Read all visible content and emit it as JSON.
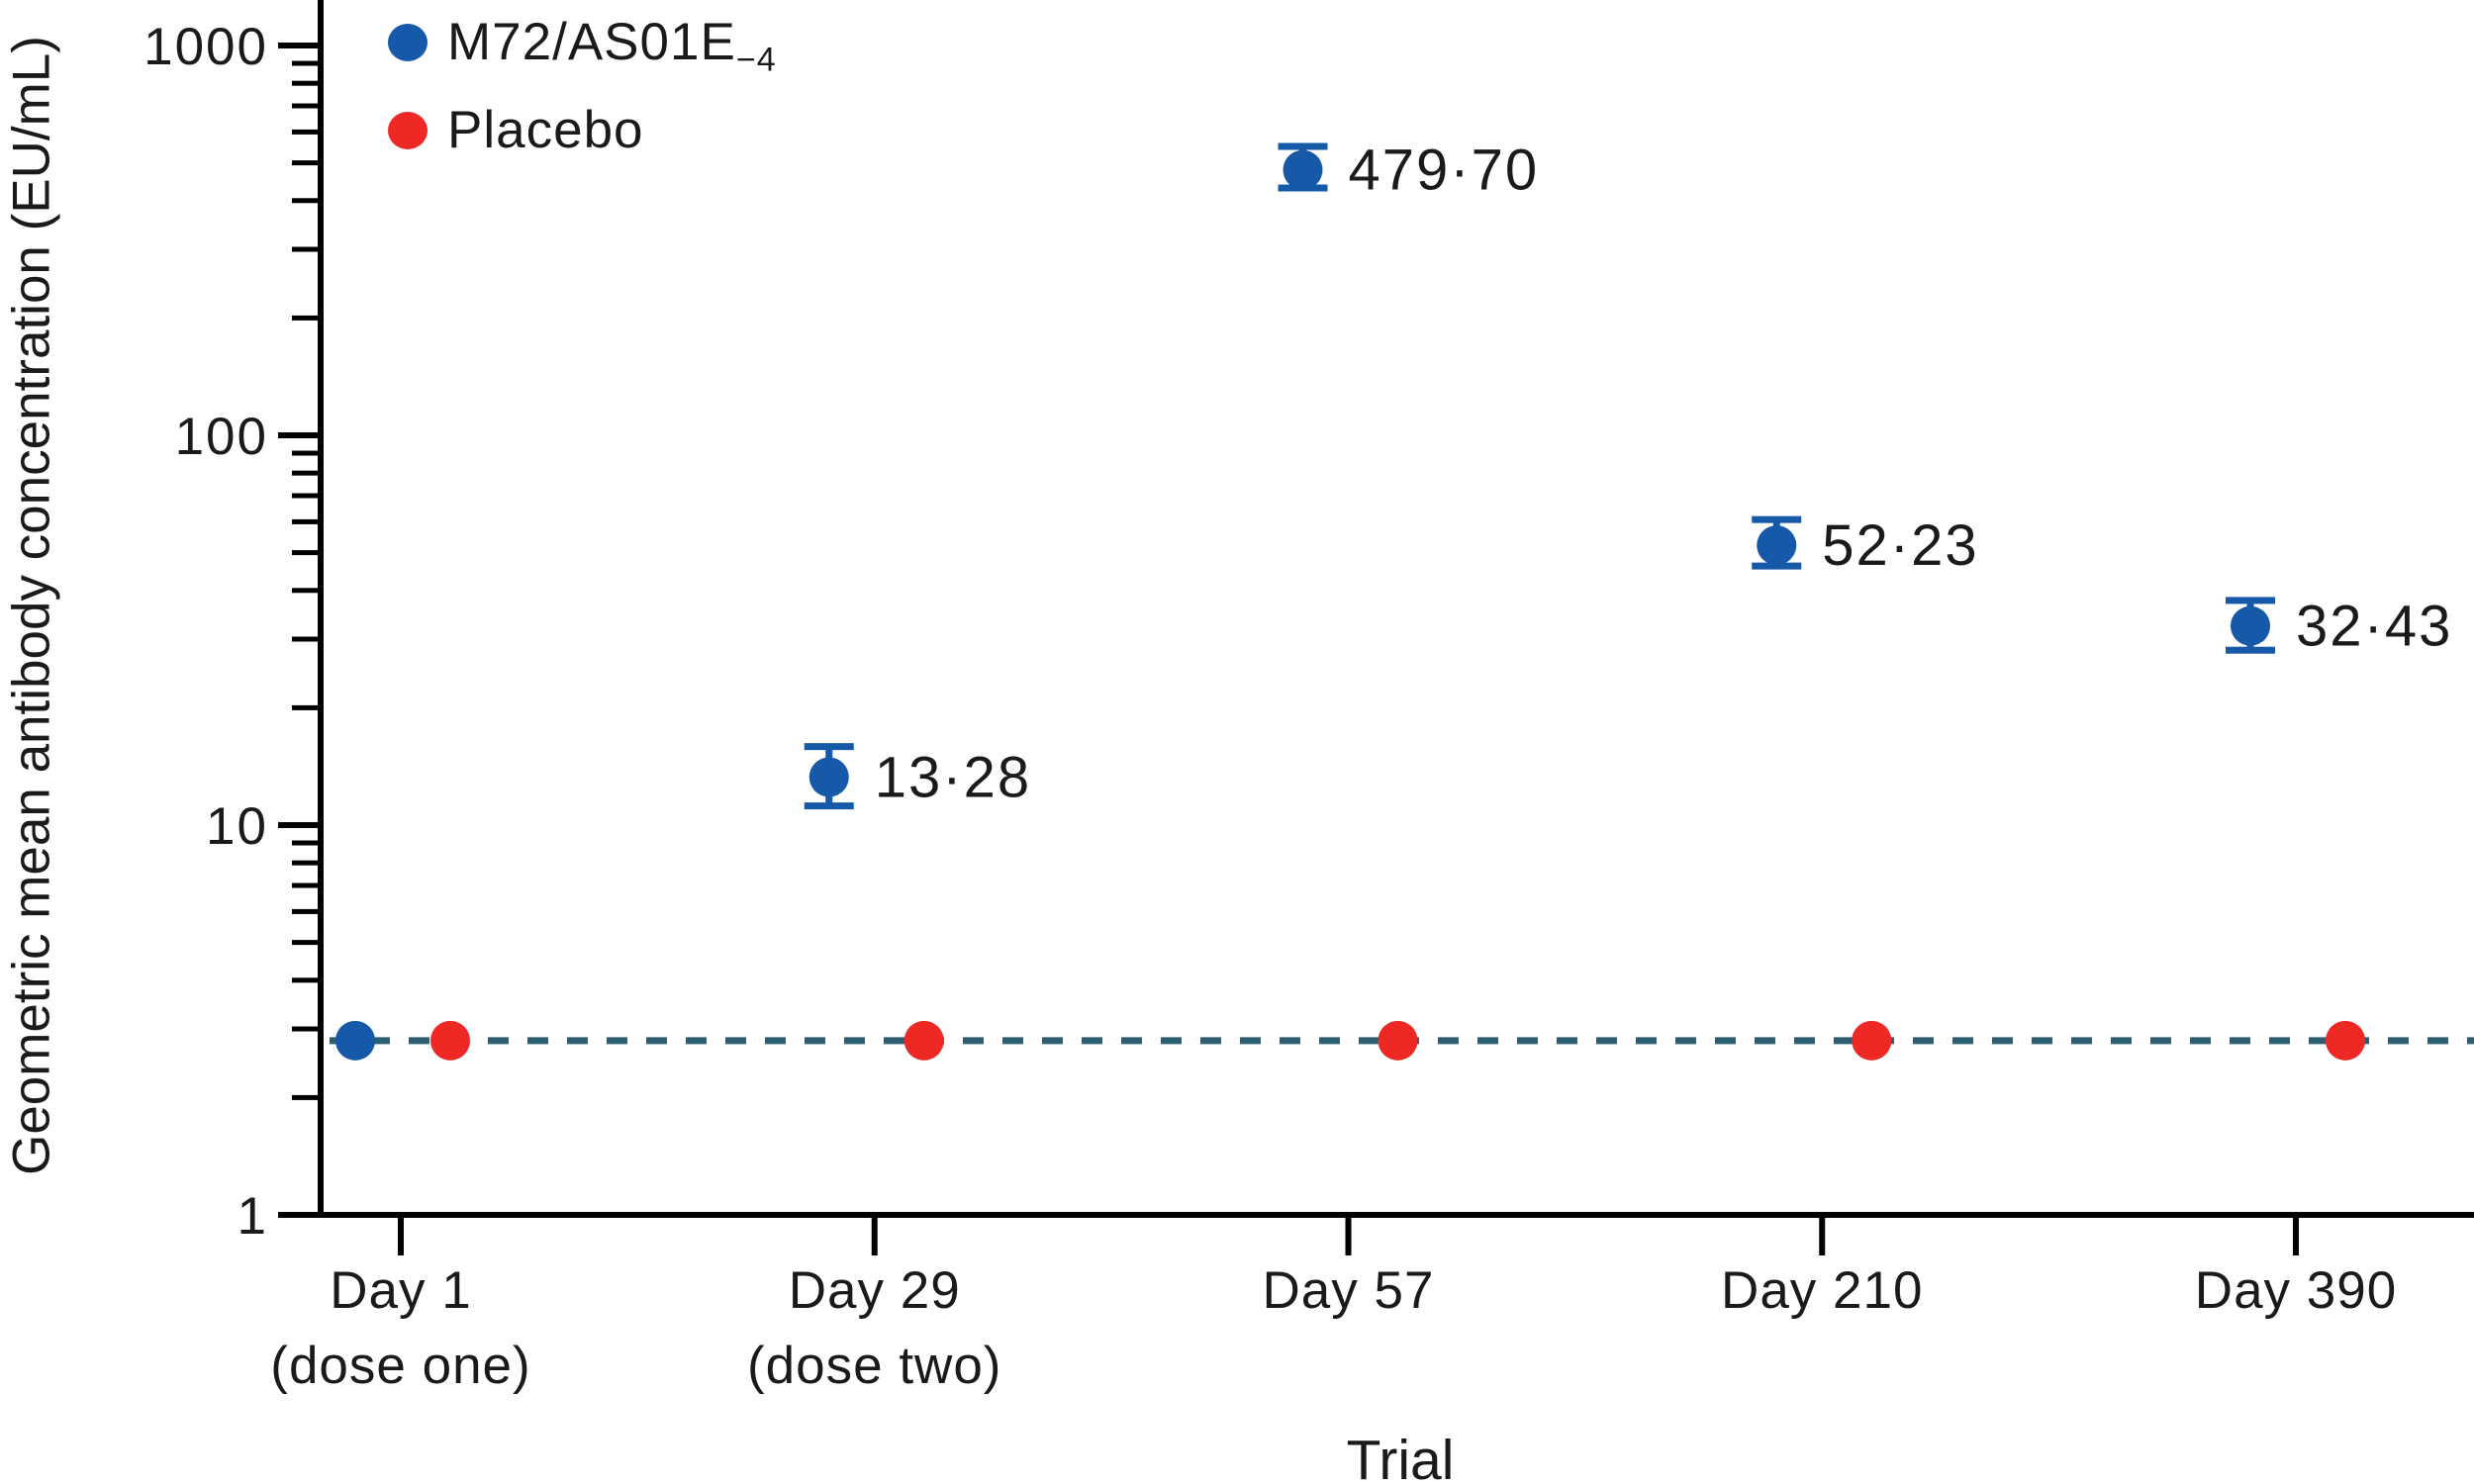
{
  "legend": {
    "m72": {
      "main": "M72/AS01E",
      "sub": "−4"
    },
    "placebo": {
      "label": "Placebo"
    }
  },
  "chart_data": {
    "type": "scatter",
    "title": "",
    "xlabel": "Trial",
    "ylabel": "Geometric mean antibody concentration (EU/mL)",
    "y_scale": "log10",
    "ylim": [
      1,
      1000
    ],
    "y_major_ticks": [
      1,
      10,
      100,
      1000
    ],
    "y_major_tick_labels": [
      "1",
      "10",
      "100",
      "1000"
    ],
    "categories": [
      "Day 1",
      "Day 29",
      "Day 57",
      "Day 210",
      "Day 390"
    ],
    "x_tick_label_lines": [
      [
        "Day 1",
        "(dose one)"
      ],
      [
        "Day 29",
        "(dose two)"
      ],
      [
        "Day 57"
      ],
      [
        "Day 210"
      ],
      [
        "Day 390"
      ]
    ],
    "grid": false,
    "legend_position": "top-left",
    "cutoff_line": {
      "value": 2.8,
      "style": "dashed",
      "color": "#2c5e71"
    },
    "series": [
      {
        "name": "M72/AS01E−4",
        "color": "#1659a8",
        "values": [
          2.8,
          13.28,
          479.7,
          52.23,
          32.43
        ],
        "ci_low": [
          null,
          11.2,
          431,
          46.2,
          28.1
        ],
        "ci_high": [
          null,
          15.9,
          551,
          60.8,
          37.7
        ],
        "point_labels": [
          "",
          "13·28",
          "479·70",
          "52·23",
          "32·43"
        ]
      },
      {
        "name": "Placebo",
        "color": "#ee2824",
        "values": [
          2.8,
          2.8,
          2.8,
          2.8,
          2.8
        ],
        "ci_low": [
          null,
          null,
          null,
          null,
          null
        ],
        "ci_high": [
          null,
          null,
          null,
          null,
          null
        ],
        "point_labels": [
          "",
          "",
          "",
          "",
          ""
        ]
      }
    ]
  }
}
